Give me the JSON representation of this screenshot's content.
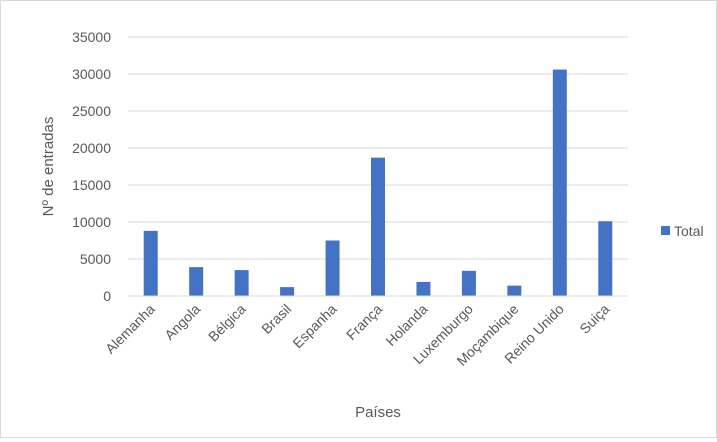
{
  "chart_data": {
    "type": "bar",
    "title": "",
    "xlabel": "Países",
    "ylabel": "Nº de entradas",
    "ylim": [
      0,
      35000
    ],
    "yticks": [
      0,
      5000,
      10000,
      15000,
      20000,
      25000,
      30000,
      35000
    ],
    "grid": true,
    "legend_position": "right",
    "categories": [
      "Alemanha",
      "Angola",
      "Bélgica",
      "Brasil",
      "Espanha",
      "França",
      "Holanda",
      "Luxemburgo",
      "Moçambique",
      "Reino Unido",
      "Suiça"
    ],
    "series": [
      {
        "name": "Total",
        "color": "#4472c4",
        "values": [
          8800,
          3900,
          3500,
          1200,
          7500,
          18700,
          1900,
          3400,
          1400,
          30600,
          10100
        ]
      }
    ]
  }
}
